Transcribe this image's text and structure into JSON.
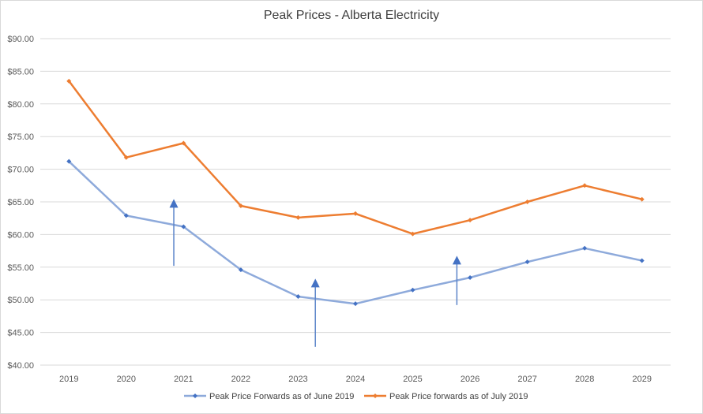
{
  "chart_data": {
    "type": "line",
    "title": "Peak Prices - Alberta Electricity",
    "xlabel": "",
    "ylabel": "",
    "categories": [
      "2019",
      "2020",
      "2021",
      "2022",
      "2023",
      "2024",
      "2025",
      "2026",
      "2027",
      "2028",
      "2029"
    ],
    "ylim": [
      40,
      90
    ],
    "yticks": [
      "$40.00",
      "$45.00",
      "$50.00",
      "$55.00",
      "$60.00",
      "$65.00",
      "$70.00",
      "$75.00",
      "$80.00",
      "$85.00",
      "$90.00"
    ],
    "grid": "horizontal",
    "legend_position": "bottom",
    "series": [
      {
        "name": "Peak Price Forwards as of June 2019",
        "color": "#8eaadb",
        "marker_color": "#4472c4",
        "values": [
          71.2,
          62.9,
          61.2,
          54.6,
          50.5,
          49.4,
          51.5,
          53.4,
          55.8,
          57.9,
          56.0
        ]
      },
      {
        "name": "Peak Price forwards as of July 2019",
        "color": "#ed7d31",
        "marker_color": "#ed7d31",
        "values": [
          83.5,
          71.8,
          74.0,
          64.4,
          62.6,
          63.2,
          60.1,
          62.2,
          65.0,
          67.5,
          65.4
        ]
      }
    ],
    "annotations": [
      {
        "type": "arrow",
        "x": 1.83,
        "y_from": 55.2,
        "y_to": 65.2,
        "color": "#4472c4"
      },
      {
        "type": "arrow",
        "x": 4.3,
        "y_from": 42.8,
        "y_to": 53.0,
        "color": "#4472c4"
      },
      {
        "type": "arrow",
        "x": 6.77,
        "y_from": 49.2,
        "y_to": 56.5,
        "color": "#4472c4"
      }
    ]
  }
}
